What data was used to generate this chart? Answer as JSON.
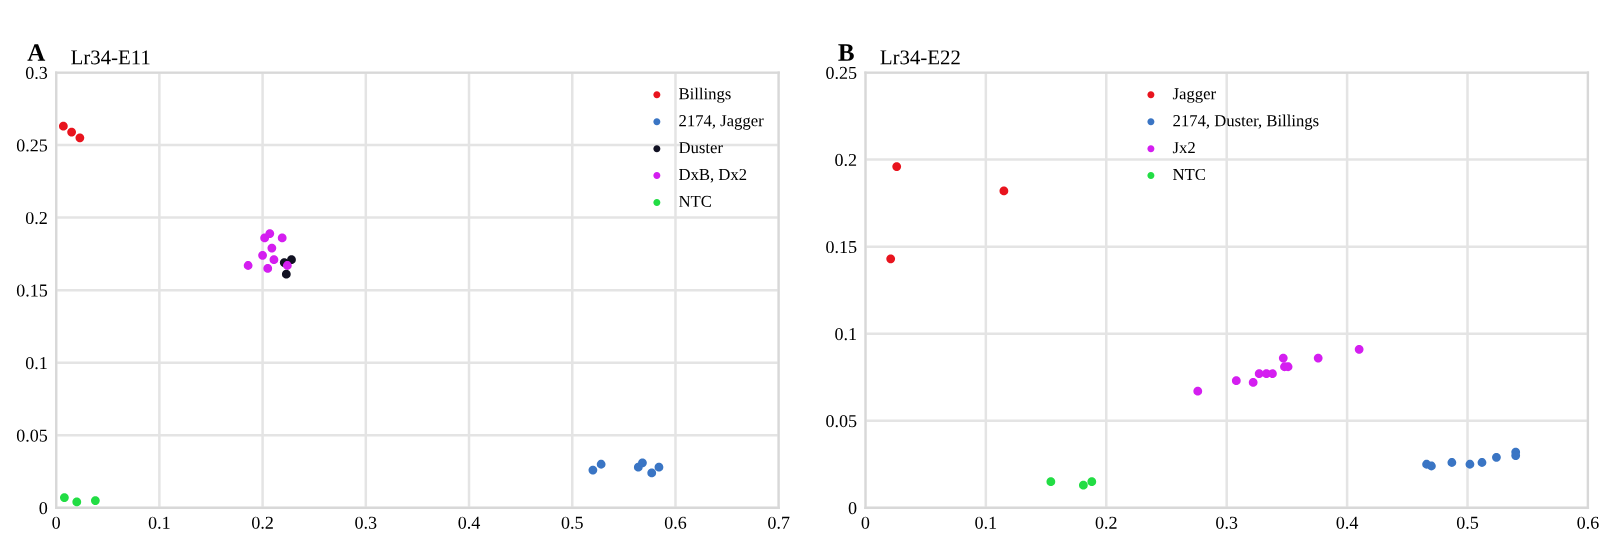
{
  "chart_data": [
    {
      "type": "scatter",
      "title": "Lr34-E11",
      "annotations": [
        "A"
      ],
      "xlim": [
        0,
        0.7
      ],
      "xticks": [
        0,
        0.1,
        0.2,
        0.3,
        0.4,
        0.5,
        0.6,
        0.7
      ],
      "ylim": [
        0,
        0.3
      ],
      "yticks": [
        0,
        0.05,
        0.1,
        0.15,
        0.2,
        0.25,
        0.3
      ],
      "grid": true,
      "legend": "top right",
      "marker": "circle",
      "series": [
        {
          "name": "Billings",
          "color": "#e8141e",
          "x": [
            0.007,
            0.015,
            0.023
          ],
          "values": [
            0.263,
            0.259,
            0.255
          ]
        },
        {
          "name": "2174, Jagger",
          "color": "#3a75c4",
          "x": [
            0.52,
            0.528,
            0.564,
            0.568,
            0.577,
            0.584
          ],
          "values": [
            0.026,
            0.03,
            0.028,
            0.031,
            0.024,
            0.028
          ]
        },
        {
          "name": "Duster",
          "color": "#111122",
          "x": [
            0.221,
            0.228,
            0.223
          ],
          "values": [
            0.169,
            0.171,
            0.161
          ]
        },
        {
          "name": "DxB, Dx2",
          "color": "#d41ef0",
          "x": [
            0.186,
            0.2,
            0.202,
            0.207,
            0.209,
            0.211,
            0.205,
            0.219,
            0.224
          ],
          "values": [
            0.167,
            0.174,
            0.186,
            0.189,
            0.179,
            0.171,
            0.165,
            0.186,
            0.167
          ]
        },
        {
          "name": "NTC",
          "color": "#22dd44",
          "x": [
            0.008,
            0.02,
            0.038
          ],
          "values": [
            0.007,
            0.004,
            0.005
          ]
        }
      ]
    },
    {
      "type": "scatter",
      "title": "Lr34-E22",
      "annotations": [
        "B"
      ],
      "xlim": [
        0,
        0.6
      ],
      "xticks": [
        0,
        0.1,
        0.2,
        0.3,
        0.4,
        0.5,
        0.6
      ],
      "ylim": [
        0,
        0.25
      ],
      "yticks": [
        0,
        0.05,
        0.1,
        0.15,
        0.2,
        0.25
      ],
      "grid": true,
      "legend": "upper center",
      "marker": "circle",
      "series": [
        {
          "name": "Jagger",
          "color": "#e8141e",
          "x": [
            0.026,
            0.115,
            0.021
          ],
          "values": [
            0.196,
            0.182,
            0.143
          ]
        },
        {
          "name": "2174, Duster, Billings",
          "color": "#3a75c4",
          "x": [
            0.466,
            0.47,
            0.487,
            0.502,
            0.512,
            0.524,
            0.54,
            0.54
          ],
          "values": [
            0.025,
            0.024,
            0.026,
            0.025,
            0.026,
            0.029,
            0.032,
            0.03
          ]
        },
        {
          "name": "Jx2",
          "color": "#d41ef0",
          "x": [
            0.276,
            0.308,
            0.322,
            0.327,
            0.333,
            0.338,
            0.347,
            0.348,
            0.351,
            0.376,
            0.41
          ],
          "values": [
            0.067,
            0.073,
            0.072,
            0.077,
            0.077,
            0.077,
            0.086,
            0.081,
            0.081,
            0.086,
            0.091
          ]
        },
        {
          "name": "NTC",
          "color": "#22dd44",
          "x": [
            0.154,
            0.181,
            0.188
          ],
          "values": [
            0.015,
            0.013,
            0.015
          ]
        }
      ]
    }
  ]
}
